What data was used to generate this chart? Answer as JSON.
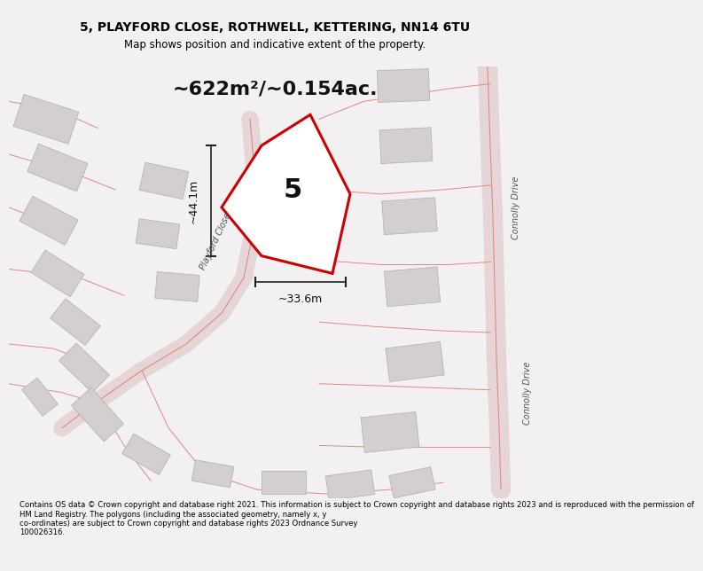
{
  "title_line1": "5, PLAYFORD CLOSE, ROTHWELL, KETTERING, NN14 6TU",
  "title_line2": "Map shows position and indicative extent of the property.",
  "area_text": "~622m²/~0.154ac.",
  "label_number": "5",
  "dim_vertical": "~44.1m",
  "dim_horizontal": "~33.6m",
  "street_label": "Playford Close",
  "road_label": "Connolly Drive",
  "footer_text": "Contains OS data © Crown copyright and database right 2021. This information is subject to Crown copyright and database rights 2023 and is reproduced with the permission of\nHM Land Registry. The polygons (including the associated geometry, namely x, y\nco-ordinates) are subject to Crown copyright and database rights 2023 Ordnance Survey\n100026316.",
  "bg_color": "#f2f0f0",
  "map_bg": "#ede8e8",
  "plot_fill": "#ffffff",
  "plot_edge": "#cc0000",
  "road_highlight": "#e5d5d5",
  "building_fill": "#d3cfcf",
  "building_edge": "#b8b4b4",
  "road_line": "#e08888",
  "dim_color": "#222222",
  "text_dark": "#111111",
  "text_mid": "#555555"
}
